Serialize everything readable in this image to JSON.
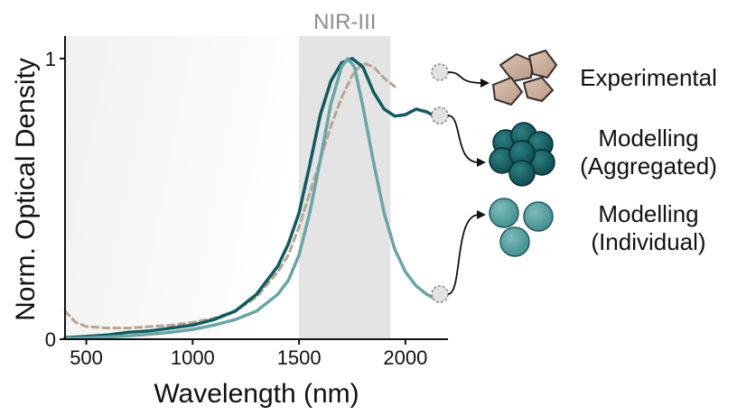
{
  "chart_data": {
    "type": "line",
    "xlabel": "Wavelength (nm)",
    "ylabel": "Norm. Optical Density",
    "xlim": [
      400,
      2200
    ],
    "ylim": [
      0,
      1.08
    ],
    "x_ticks": [
      500,
      1000,
      1500,
      2000
    ],
    "y_ticks": [
      0,
      1
    ],
    "highlight_band": {
      "label": "NIR-III",
      "range": [
        1500,
        1930
      ],
      "color": "#e4e4e4"
    },
    "series": [
      {
        "key": "experimental",
        "color": "#b9a48f",
        "style": "dashed",
        "x": [
          400,
          450,
          500,
          600,
          700,
          800,
          900,
          1000,
          1100,
          1200,
          1300,
          1400,
          1450,
          1500,
          1550,
          1600,
          1650,
          1700,
          1750,
          1800,
          1850,
          1900,
          1950
        ],
        "y": [
          0.1,
          0.06,
          0.045,
          0.04,
          0.04,
          0.045,
          0.05,
          0.06,
          0.075,
          0.1,
          0.15,
          0.24,
          0.3,
          0.4,
          0.52,
          0.64,
          0.76,
          0.86,
          0.94,
          0.985,
          0.97,
          0.93,
          0.9
        ]
      },
      {
        "key": "aggregated",
        "color": "#0f5b5f",
        "style": "solid",
        "x": [
          400,
          500,
          600,
          700,
          800,
          900,
          1000,
          1100,
          1200,
          1300,
          1400,
          1450,
          1500,
          1550,
          1600,
          1650,
          1700,
          1750,
          1800,
          1850,
          1900,
          1950,
          2000,
          2050,
          2100,
          2150
        ],
        "y": [
          0.005,
          0.01,
          0.015,
          0.025,
          0.03,
          0.04,
          0.05,
          0.07,
          0.1,
          0.16,
          0.26,
          0.34,
          0.45,
          0.62,
          0.8,
          0.92,
          0.985,
          1.0,
          0.97,
          0.88,
          0.82,
          0.795,
          0.8,
          0.82,
          0.81,
          0.79
        ]
      },
      {
        "key": "individual",
        "color": "#6aa5a6",
        "style": "solid",
        "x": [
          400,
          500,
          600,
          700,
          800,
          900,
          1000,
          1100,
          1200,
          1300,
          1400,
          1450,
          1500,
          1550,
          1600,
          1650,
          1700,
          1730,
          1760,
          1800,
          1850,
          1900,
          1950,
          2000,
          2050,
          2100,
          2150
        ],
        "y": [
          0.003,
          0.005,
          0.008,
          0.012,
          0.018,
          0.025,
          0.035,
          0.05,
          0.07,
          0.1,
          0.16,
          0.21,
          0.3,
          0.45,
          0.64,
          0.84,
          0.97,
          1.0,
          0.97,
          0.83,
          0.63,
          0.45,
          0.32,
          0.24,
          0.19,
          0.16,
          0.14
        ]
      }
    ],
    "legend": [
      {
        "series": "experimental",
        "line1": "Experimental",
        "line2": "",
        "icon": "irregular-particles-icon",
        "color": "#c8ab9a"
      },
      {
        "series": "aggregated",
        "line1": "Modelling",
        "line2": "(Aggregated)",
        "icon": "aggregated-spheres-icon",
        "color": "#0f5b5f"
      },
      {
        "series": "individual",
        "line1": "Modelling",
        "line2": "(Individual)",
        "icon": "individual-spheres-icon",
        "color": "#5aa0a0"
      }
    ]
  }
}
